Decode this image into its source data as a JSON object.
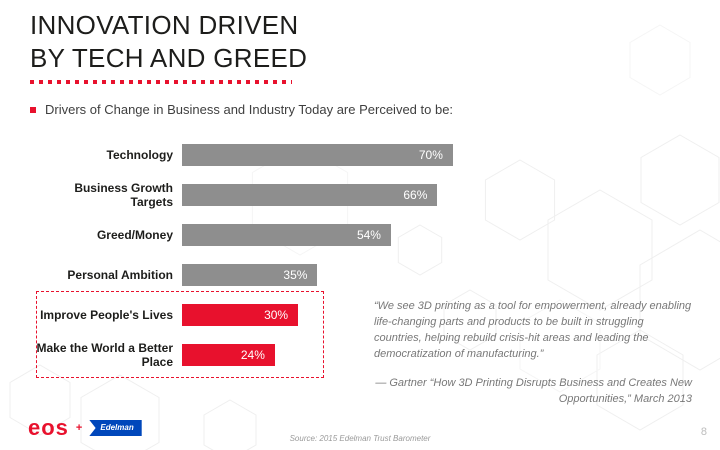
{
  "slide": {
    "title_line1": "INNOVATION DRIVEN",
    "title_line2": "BY TECH AND GREED",
    "bullet_text": "Drivers of Change in Business and Industry Today are Perceived to be:"
  },
  "chart_data": {
    "type": "bar",
    "orientation": "horizontal",
    "title": "Drivers of Change in Business and Industry Today are Perceived to be:",
    "categories": [
      "Technology",
      "Business Growth Targets",
      "Greed/Money",
      "Personal Ambition",
      "Improve People's Lives",
      "Make the World a Better Place"
    ],
    "values": [
      70,
      66,
      54,
      35,
      30,
      24
    ],
    "value_labels": [
      "70%",
      "66%",
      "54%",
      "35%",
      "30%",
      "24%"
    ],
    "bar_colors": [
      "#8e8e8e",
      "#8e8e8e",
      "#8e8e8e",
      "#8e8e8e",
      "#e8112d",
      "#e8112d"
    ],
    "xlim": [
      0,
      100
    ],
    "grid": false,
    "legend": false,
    "highlighted_categories": [
      "Improve People's Lives",
      "Make the World a Better Place"
    ]
  },
  "quote": {
    "text": "“We see 3D printing as a tool for empowerment, already enabling life-changing parts and products to be built in struggling countries, helping rebuild crisis-hit areas and leading the democratization of manufacturing.”",
    "attribution": "— Gartner “How 3D Printing Disrupts Business and Creates New Opportunities,” March 2013"
  },
  "footer": {
    "eos_logo_text": "eos",
    "logo_separator": "+",
    "edelman_logo_text": "Edelman",
    "source_text": "Source: 2015 Edelman Trust Barometer",
    "page_number": "8"
  },
  "colors": {
    "accent_red": "#e8112d",
    "bar_gray": "#8e8e8e",
    "edelman_blue": "#0047bb"
  }
}
